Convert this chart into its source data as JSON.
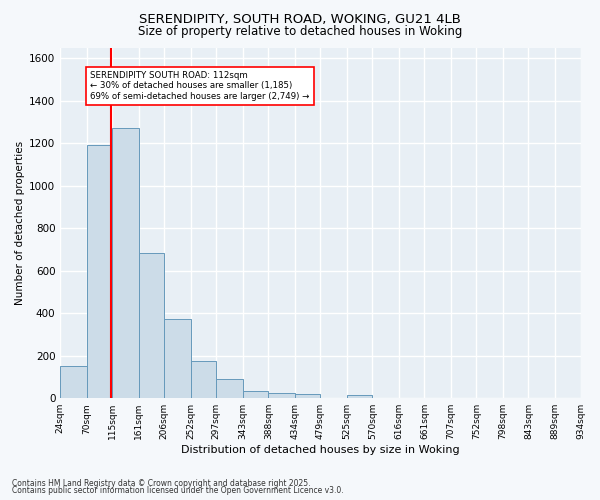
{
  "title1": "SERENDIPITY, SOUTH ROAD, WOKING, GU21 4LB",
  "title2": "Size of property relative to detached houses in Woking",
  "xlabel": "Distribution of detached houses by size in Woking",
  "ylabel": "Number of detached properties",
  "bin_edges": [
    24,
    70,
    115,
    161,
    206,
    252,
    297,
    343,
    388,
    434,
    479,
    525,
    570,
    616,
    661,
    707,
    752,
    798,
    843,
    889,
    934
  ],
  "bar_heights": [
    150,
    1190,
    1270,
    685,
    375,
    175,
    90,
    35,
    25,
    20,
    0,
    15,
    0,
    0,
    0,
    0,
    0,
    0,
    0,
    0
  ],
  "bar_color": "#ccdce8",
  "bar_edge_color": "#6699bb",
  "red_line_x": 112,
  "annotation_title": "SERENDIPITY SOUTH ROAD: 112sqm",
  "annotation_line1": "← 30% of detached houses are smaller (1,185)",
  "annotation_line2": "69% of semi-detached houses are larger (2,749) →",
  "ylim": [
    0,
    1650
  ],
  "yticks": [
    0,
    200,
    400,
    600,
    800,
    1000,
    1200,
    1400,
    1600
  ],
  "background_color": "#e8eff5",
  "grid_color": "#ffffff",
  "fig_bg_color": "#f5f8fb",
  "footnote1": "Contains HM Land Registry data © Crown copyright and database right 2025.",
  "footnote2": "Contains public sector information licensed under the Open Government Licence v3.0."
}
